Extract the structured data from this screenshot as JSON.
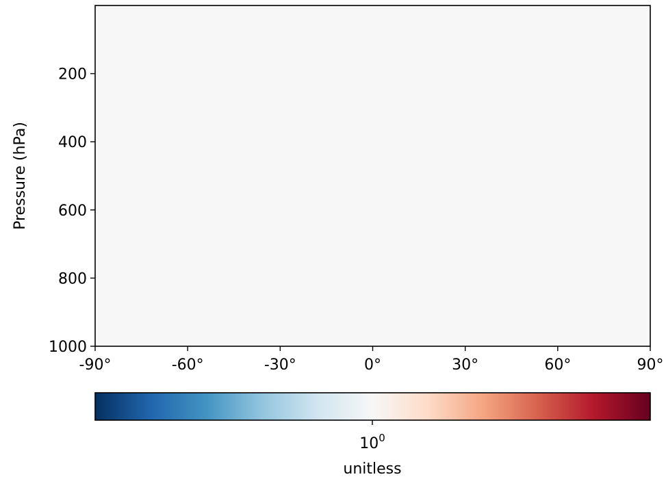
{
  "chart_data": {
    "type": "heatmap",
    "title": "",
    "xlabel": "",
    "ylabel": "Pressure (hPa)",
    "xlim": [
      -90,
      90
    ],
    "ylim": [
      1000,
      0
    ],
    "y_inverted": true,
    "x_ticks": [
      -90,
      -60,
      -30,
      0,
      30,
      60,
      90
    ],
    "x_tick_labels": [
      "-90°",
      "-60°",
      "-30°",
      "0°",
      "30°",
      "60°",
      "90°"
    ],
    "y_ticks": [
      200,
      400,
      600,
      800,
      1000
    ],
    "y_tick_labels": [
      "200",
      "400",
      "600",
      "800",
      "1000"
    ],
    "field_color": "#f7f7f7",
    "grid": false,
    "colorbar": {
      "orientation": "horizontal",
      "placement": "bottom",
      "colormap": "RdBu_r",
      "scale": "log",
      "tick_base": "10",
      "tick_exponent": "0",
      "label": "unitless",
      "colors": [
        "#053061",
        "#2166ac",
        "#4393c3",
        "#92c5de",
        "#d1e5f0",
        "#f7f7f7",
        "#fddbc7",
        "#f4a582",
        "#d6604d",
        "#b2182b",
        "#67001f"
      ]
    }
  }
}
